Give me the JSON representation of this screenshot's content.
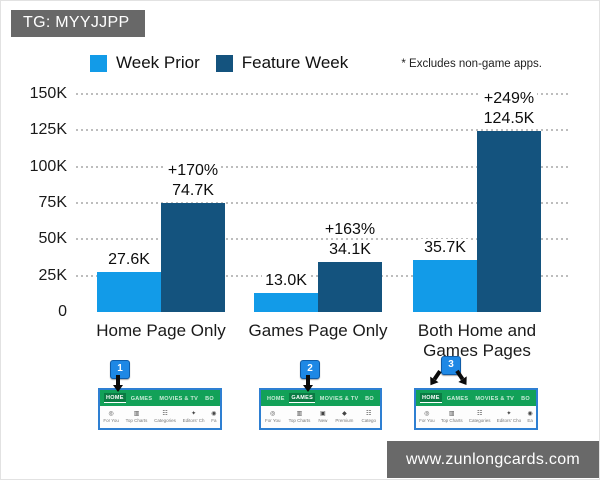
{
  "header": {
    "badge": "TG: MYYJJPP"
  },
  "chart_data": {
    "type": "bar",
    "title": "",
    "categories": [
      "Home Page Only",
      "Games Page Only",
      "Both Home and Games Pages"
    ],
    "series": [
      {
        "name": "Week Prior",
        "color": "#129BE8",
        "values": [
          27600,
          13000,
          35700
        ],
        "value_labels": [
          "27.6K",
          "13.0K",
          "35.7K"
        ]
      },
      {
        "name": "Feature Week",
        "color": "#14537E",
        "values": [
          74700,
          34100,
          124500
        ],
        "value_labels": [
          "74.7K",
          "34.1K",
          "124.5K"
        ],
        "pct_change_labels": [
          "+170%",
          "+163%",
          "+249%"
        ]
      }
    ],
    "ylim": [
      0,
      150000
    ],
    "yticks": {
      "values": [
        0,
        25000,
        50000,
        75000,
        100000,
        125000,
        150000
      ],
      "labels": [
        "0",
        "25K",
        "50K",
        "75K",
        "100K",
        "125K",
        "150K"
      ]
    },
    "grid": "dotted-horizontal",
    "legend_position": "top",
    "annotation": "* Excludes non-game apps."
  },
  "thumbnails": [
    {
      "marker": "1",
      "tabs": [
        "HOME",
        "GAMES",
        "MOVIES & TV",
        "BO"
      ],
      "active_tabs": [
        "HOME"
      ],
      "apps": [
        {
          "icon": "for-you-icon",
          "glyph": "◎",
          "label": "For You"
        },
        {
          "icon": "top-charts-icon",
          "glyph": "▥",
          "label": "Top Charts"
        },
        {
          "icon": "categories-icon",
          "glyph": "☷",
          "label": "Categories"
        },
        {
          "icon": "editors-choice-icon",
          "glyph": "✦",
          "label": "Editors' Ch"
        },
        {
          "icon": "family-icon",
          "glyph": "◉",
          "label": "Fa"
        }
      ]
    },
    {
      "marker": "2",
      "tabs": [
        "HOME",
        "GAMES",
        "MOVIES & TV",
        "BO"
      ],
      "active_tabs": [
        "GAMES"
      ],
      "apps": [
        {
          "icon": "for-you-icon",
          "glyph": "◎",
          "label": "For You"
        },
        {
          "icon": "top-charts-icon",
          "glyph": "▥",
          "label": "Top Charts"
        },
        {
          "icon": "new-icon",
          "glyph": "▣",
          "label": "New"
        },
        {
          "icon": "premium-icon",
          "glyph": "◆",
          "label": "Premium"
        },
        {
          "icon": "categories-icon",
          "glyph": "☷",
          "label": "Catego"
        }
      ]
    },
    {
      "marker": "3",
      "tabs": [
        "HOME",
        "GAMES",
        "MOVIES & TV",
        "BO"
      ],
      "active_tabs": [
        "HOME"
      ],
      "apps": [
        {
          "icon": "for-you-icon",
          "glyph": "◎",
          "label": "For You"
        },
        {
          "icon": "top-charts-icon",
          "glyph": "▥",
          "label": "Top Charts"
        },
        {
          "icon": "categories-icon",
          "glyph": "☷",
          "label": "Categories"
        },
        {
          "icon": "editors-choice-icon",
          "glyph": "✦",
          "label": "Editors' Cho"
        },
        {
          "icon": "early-access-icon",
          "glyph": "◉",
          "label": "Ea"
        }
      ]
    }
  ],
  "watermark": {
    "text": "www.zunlongcards.com"
  },
  "colors": {
    "week_prior": "#129BE8",
    "feature_week": "#14537E",
    "badge_gray": "#686868",
    "watermark_gray": "#696969",
    "play_green": "#12A158",
    "active_tab_green": "#0A7B43",
    "marker_blue": "#1E88E5",
    "thumb_border_blue": "#2E7FD2",
    "grid_gray": "#BDBDBD"
  }
}
